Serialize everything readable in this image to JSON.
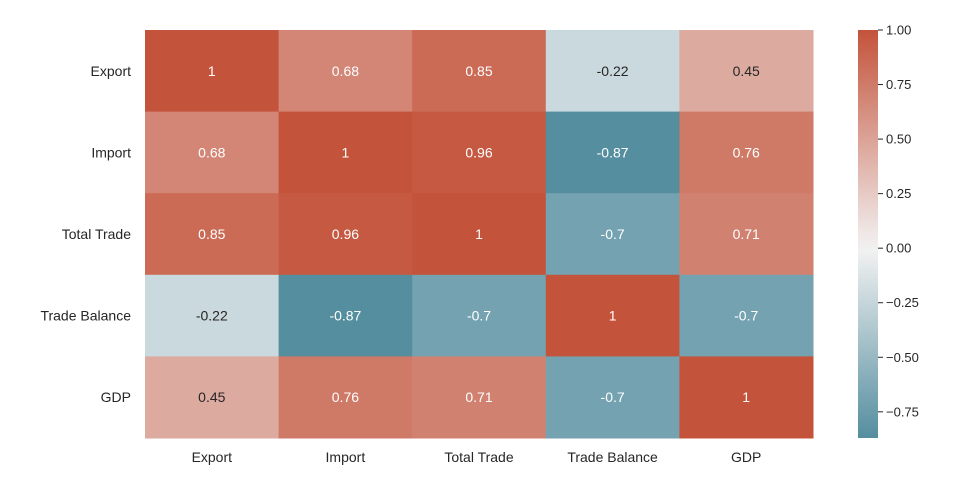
{
  "chart_data": {
    "type": "heatmap",
    "title": "",
    "xlabel": "",
    "ylabel": "",
    "x_categories": [
      "Export",
      "Import",
      "Total Trade",
      "Trade Balance",
      "GDP"
    ],
    "y_categories": [
      "Export",
      "Import",
      "Total Trade",
      "Trade Balance",
      "GDP"
    ],
    "values": [
      [
        1,
        0.68,
        0.85,
        -0.22,
        0.45
      ],
      [
        0.68,
        1,
        0.96,
        -0.87,
        0.76
      ],
      [
        0.85,
        0.96,
        1,
        -0.7,
        0.71
      ],
      [
        -0.22,
        -0.87,
        -0.7,
        1,
        -0.7
      ],
      [
        0.45,
        0.76,
        0.71,
        -0.7,
        1
      ]
    ],
    "annotations": [
      [
        "1",
        "0.68",
        "0.85",
        "-0.22",
        "0.45"
      ],
      [
        "0.68",
        "1",
        "0.96",
        "-0.87",
        "0.76"
      ],
      [
        "0.85",
        "0.96",
        "1",
        "-0.7",
        "0.71"
      ],
      [
        "-0.22",
        "-0.87",
        "-0.7",
        "1",
        "-0.7"
      ],
      [
        "0.45",
        "0.76",
        "0.71",
        "-0.7",
        "1"
      ]
    ],
    "colorbar": {
      "range": [
        -0.87,
        1.0
      ],
      "ticks": [
        1.0,
        0.75,
        0.5,
        0.25,
        0.0,
        -0.25,
        -0.5,
        -0.75
      ],
      "tick_labels": [
        "1.00",
        "0.75",
        "0.50",
        "0.25",
        "0.00",
        "−0.25",
        "−0.50",
        "−0.75"
      ],
      "placement": "right"
    },
    "colormap": {
      "negative_color": "#3e7f93",
      "center_color": "#f2f2f2",
      "positive_color": "#c4533b",
      "center": 0
    }
  }
}
